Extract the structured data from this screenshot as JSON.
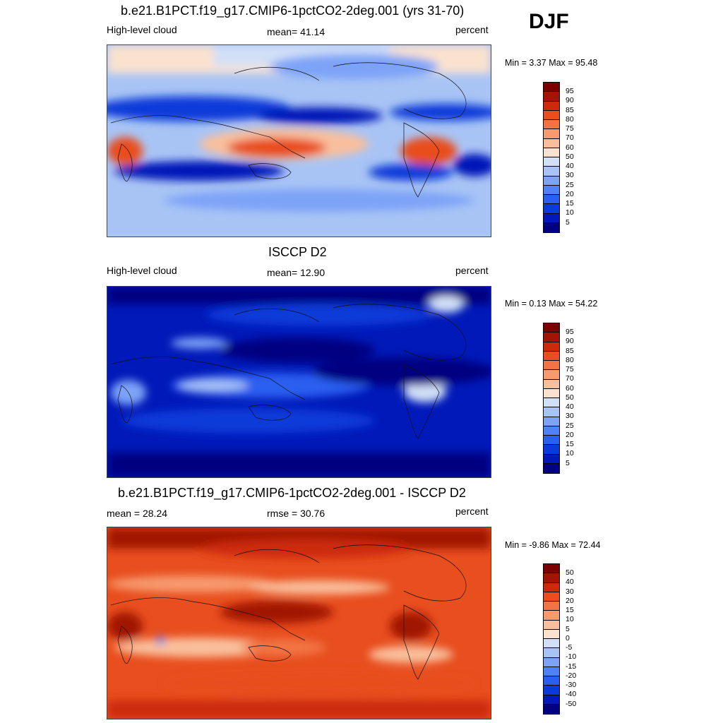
{
  "season": "DJF",
  "panels": [
    {
      "title": "b.e21.B1PCT.f19_g17.CMIP6-1pctCO2-2deg.001 (yrs 31-70)",
      "left_label": "High-level cloud",
      "center_label": "mean=  41.14",
      "right_label": "percent",
      "minmax": "Min =   3.37 Max =  95.48",
      "colorbar_ticks": [
        "95",
        "90",
        "85",
        "80",
        "75",
        "70",
        "60",
        "50",
        "40",
        "30",
        "25",
        "20",
        "15",
        "10",
        "5"
      ]
    },
    {
      "title": "ISCCP D2",
      "left_label": "High-level cloud",
      "center_label": "mean=  12.90",
      "right_label": "percent",
      "minmax": "Min =   0.13 Max =  54.22",
      "colorbar_ticks": [
        "95",
        "90",
        "85",
        "80",
        "75",
        "70",
        "60",
        "50",
        "40",
        "30",
        "25",
        "20",
        "15",
        "10",
        "5"
      ]
    },
    {
      "title": "b.e21.B1PCT.f19_g17.CMIP6-1pctCO2-2deg.001 - ISCCP D2",
      "left_label": "mean =  28.24",
      "center_label": "rmse =  30.76",
      "right_label": "percent",
      "minmax": "Min =  -9.86 Max =  72.44",
      "colorbar_ticks": [
        "50",
        "40",
        "30",
        "20",
        "15",
        "10",
        "5",
        "0",
        "-5",
        "-10",
        "-15",
        "-20",
        "-30",
        "-40",
        "-50"
      ]
    }
  ],
  "colors": {
    "scale": [
      "#000080",
      "#0019b8",
      "#0a3ad9",
      "#2a5ff0",
      "#5082f7",
      "#7da3f7",
      "#a8c4f5",
      "#d2e0f7",
      "#fbe2cf",
      "#f9bf9c",
      "#f79a6e",
      "#f27444",
      "#e84e1e",
      "#cc2a0a",
      "#a11406",
      "#7c0000"
    ]
  }
}
